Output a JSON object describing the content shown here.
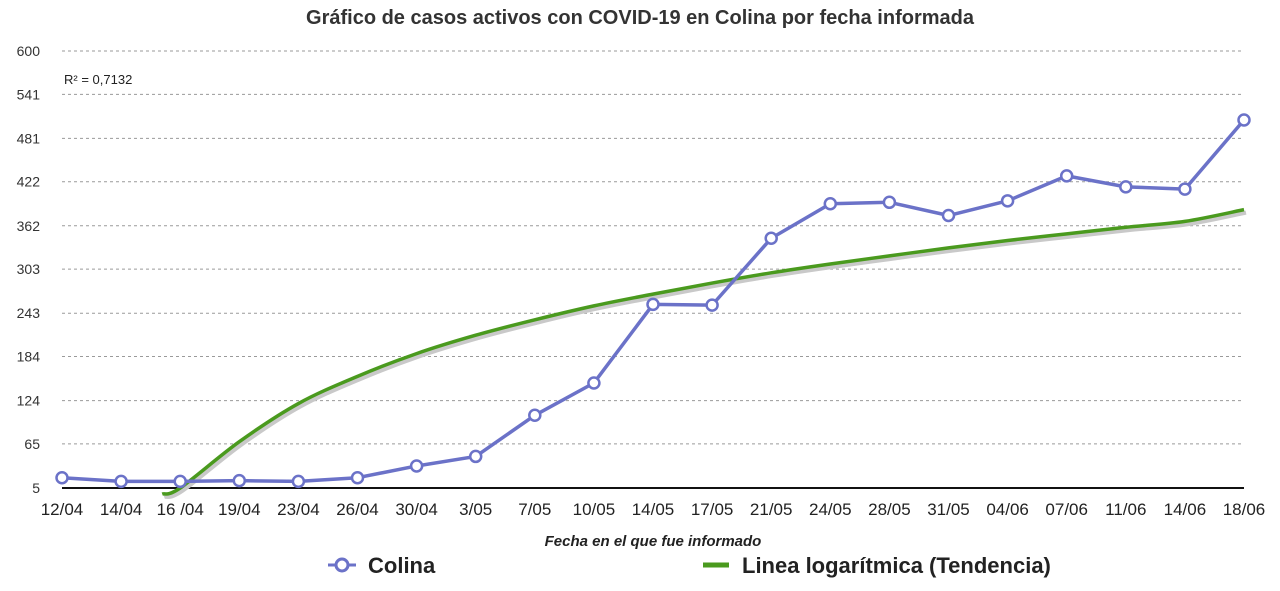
{
  "chart_data": {
    "type": "line",
    "title": "Gráfico de casos activos con COVID-19 en Colina por fecha informada",
    "xlabel": "Fecha en el que fue informado",
    "ylabel": "",
    "y_ticks": [
      "5",
      "65",
      "124",
      "184",
      "243",
      "303",
      "362",
      "422",
      "481",
      "541",
      "600"
    ],
    "ylim": [
      5,
      600
    ],
    "categories": [
      "12/04",
      "14/04",
      "16 /04",
      "19/04",
      "23/04",
      "26/04",
      "30/04",
      "3/05",
      "7/05",
      "10/05",
      "14/05",
      "17/05",
      "21/05",
      "24/05",
      "28/05",
      "31/05",
      "04/06",
      "07/06",
      "11/06",
      "14/06",
      "18/06"
    ],
    "series": [
      {
        "name": "Colina",
        "color": "#6b72c8",
        "marker": "open-circle",
        "values": [
          19,
          14,
          14,
          15,
          14,
          19,
          35,
          48,
          104,
          148,
          255,
          254,
          345,
          392,
          394,
          376,
          396,
          430,
          415,
          412,
          506
        ]
      },
      {
        "name": "Linea logarítmica (Tendencia)",
        "color": "#4a9a1e",
        "marker": "none",
        "values": [
          null,
          null,
          5,
          68,
          120,
          157,
          188,
          213,
          234,
          253,
          269,
          284,
          298,
          310,
          321,
          332,
          342,
          351,
          360,
          368,
          384
        ]
      }
    ],
    "annotation": "R² = 0,7132",
    "grid": true,
    "legend_position": "bottom"
  }
}
